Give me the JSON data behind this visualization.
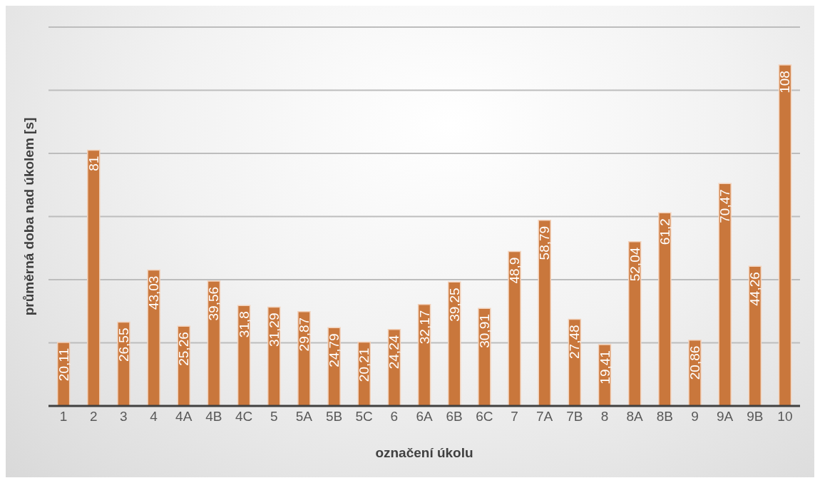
{
  "chart_data": {
    "type": "bar",
    "xlabel": "označení úkolu",
    "ylabel": "průměrná doba nad úkolem [s]",
    "categories": [
      "1",
      "2",
      "3",
      "4",
      "4A",
      "4B",
      "4C",
      "5",
      "5A",
      "5B",
      "5C",
      "6",
      "6A",
      "6B",
      "6C",
      "7",
      "7A",
      "7B",
      "8",
      "8A",
      "8B",
      "9",
      "9A",
      "9B",
      "10"
    ],
    "values": [
      20.11,
      81,
      26.55,
      43.03,
      25.26,
      39.56,
      31.8,
      31.29,
      29.87,
      24.79,
      20.21,
      24.24,
      32.17,
      39.25,
      30.91,
      48.9,
      58.79,
      27.48,
      19.41,
      52.04,
      61.2,
      20.86,
      70.47,
      44.26,
      108
    ],
    "value_labels": [
      "20,11",
      "81",
      "26,55",
      "43,03",
      "25,26",
      "39,56",
      "31,8",
      "31,29",
      "29,87",
      "24,79",
      "20,21",
      "24,24",
      "32,17",
      "39,25",
      "30,91",
      "48,9",
      "58,79",
      "27,48",
      "19,41",
      "52,04",
      "61,2",
      "20,86",
      "70,47",
      "44,26",
      "108"
    ],
    "color": "#c9773c",
    "tick_labels": "x",
    "grid": "y"
  }
}
